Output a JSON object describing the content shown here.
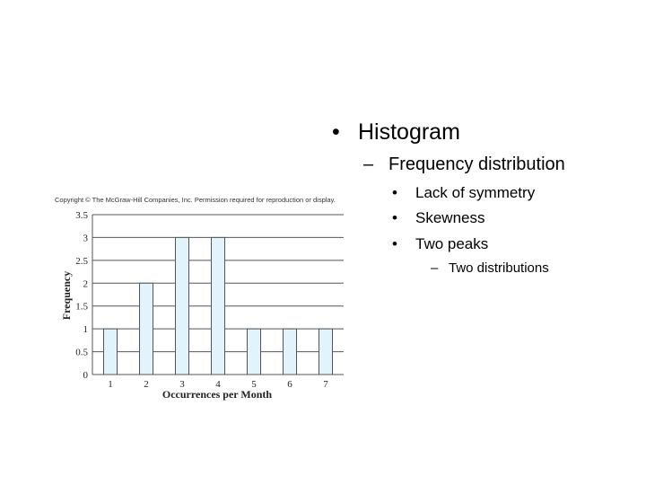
{
  "bullets": {
    "level1": "Histogram",
    "level2": "Frequency distribution",
    "level3": [
      "Lack of symmetry",
      "Skewness",
      "Two peaks"
    ],
    "level4": "Two distributions",
    "marker_round": "•",
    "marker_dash": "–"
  },
  "chart_data": {
    "type": "bar",
    "copyright": "Copyright © The McGraw-Hill Companies, Inc. Permission required for reproduction or display.",
    "categories": [
      "1",
      "2",
      "3",
      "4",
      "5",
      "6",
      "7"
    ],
    "values": [
      1,
      2,
      3,
      3,
      1,
      1,
      1
    ],
    "xlabel": "Occurrences per Month",
    "ylabel": "Frequency",
    "ylim": [
      0,
      3.5
    ],
    "yticks": [
      "0",
      "0.5",
      "1",
      "1.5",
      "2",
      "2.5",
      "3",
      "3.5"
    ],
    "grid": true,
    "bar_fill": "#e3f3fb",
    "bar_stroke": "#555555"
  }
}
